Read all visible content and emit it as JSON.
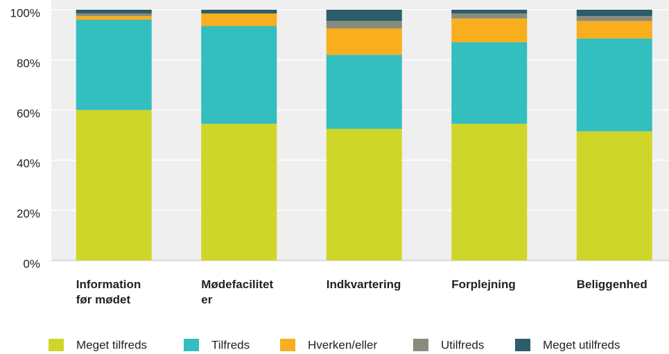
{
  "chart_data": {
    "type": "bar",
    "stacked": true,
    "categories": [
      "Information\nfør mødet",
      "Mødefacilitet\ner",
      "Indkvartering",
      "Forplejning",
      "Beliggenhed"
    ],
    "series": [
      {
        "name": "Meget tilfreds",
        "color": "#cfd62a",
        "values": [
          60,
          54.5,
          52.5,
          54.5,
          51.5
        ]
      },
      {
        "name": "Tilfreds",
        "color": "#33bec0",
        "values": [
          36,
          39,
          29.5,
          32.5,
          37
        ]
      },
      {
        "name": "Hverken/eller",
        "color": "#f8ae1d",
        "values": [
          1.5,
          5,
          10.5,
          9.5,
          7
        ]
      },
      {
        "name": "Utilfreds",
        "color": "#8a8b7b",
        "values": [
          1,
          0,
          3,
          2,
          2
        ]
      },
      {
        "name": "Meget utilfreds",
        "color": "#2b5d6b",
        "values": [
          1.5,
          1.5,
          4.5,
          1.5,
          2.5
        ]
      }
    ],
    "ylim": [
      0,
      100
    ],
    "yticks": [
      {
        "value": 0,
        "label": "0%"
      },
      {
        "value": 20,
        "label": "20%"
      },
      {
        "value": 40,
        "label": "40%"
      },
      {
        "value": 60,
        "label": "60%"
      },
      {
        "value": 80,
        "label": "80%"
      },
      {
        "value": 100,
        "label": "100%"
      }
    ],
    "grid": true,
    "legend": "bottom"
  }
}
